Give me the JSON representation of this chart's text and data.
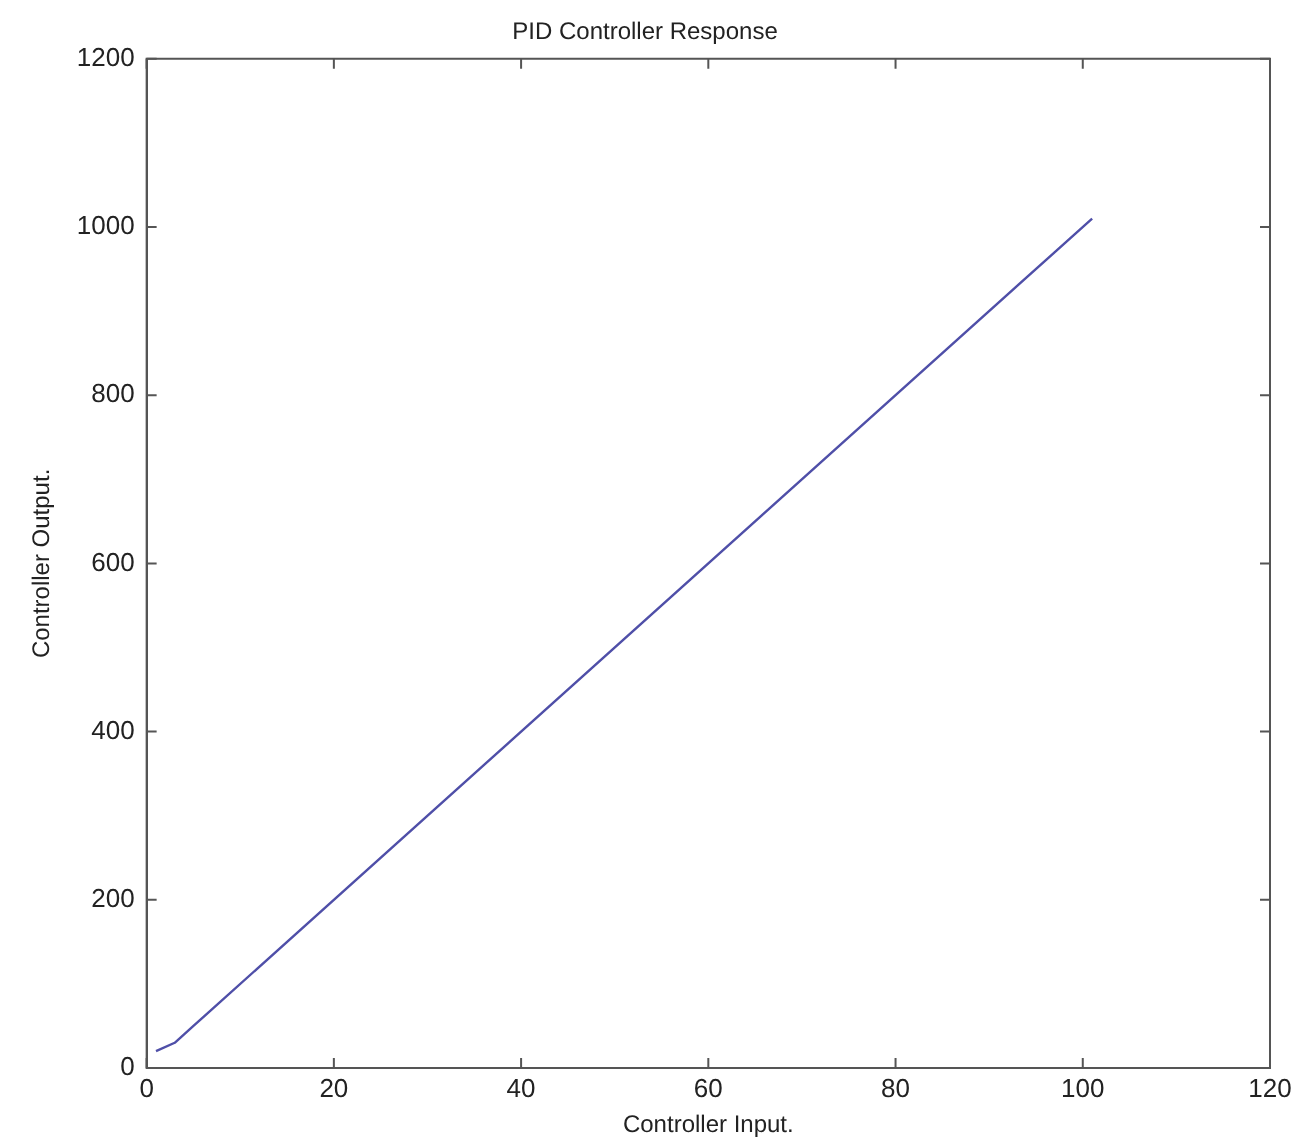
{
  "chart_data": {
    "type": "line",
    "title": "PID Controller Response",
    "xlabel": "Controller Input.",
    "ylabel": "Controller Output.",
    "x": [
      1,
      3,
      5,
      7,
      101
    ],
    "series": [
      {
        "color": "#4f4fa8",
        "values": [
          20,
          30,
          50,
          70,
          1010
        ]
      }
    ],
    "xlim": [
      0,
      120
    ],
    "xticks": [
      0,
      20,
      40,
      60,
      80,
      100,
      120
    ],
    "ylim": [
      0,
      1200
    ],
    "yticks": [
      0,
      200,
      400,
      600,
      800,
      1000,
      1200
    ],
    "grid": false,
    "legend": false,
    "marker": "none",
    "line_style": "solid"
  }
}
